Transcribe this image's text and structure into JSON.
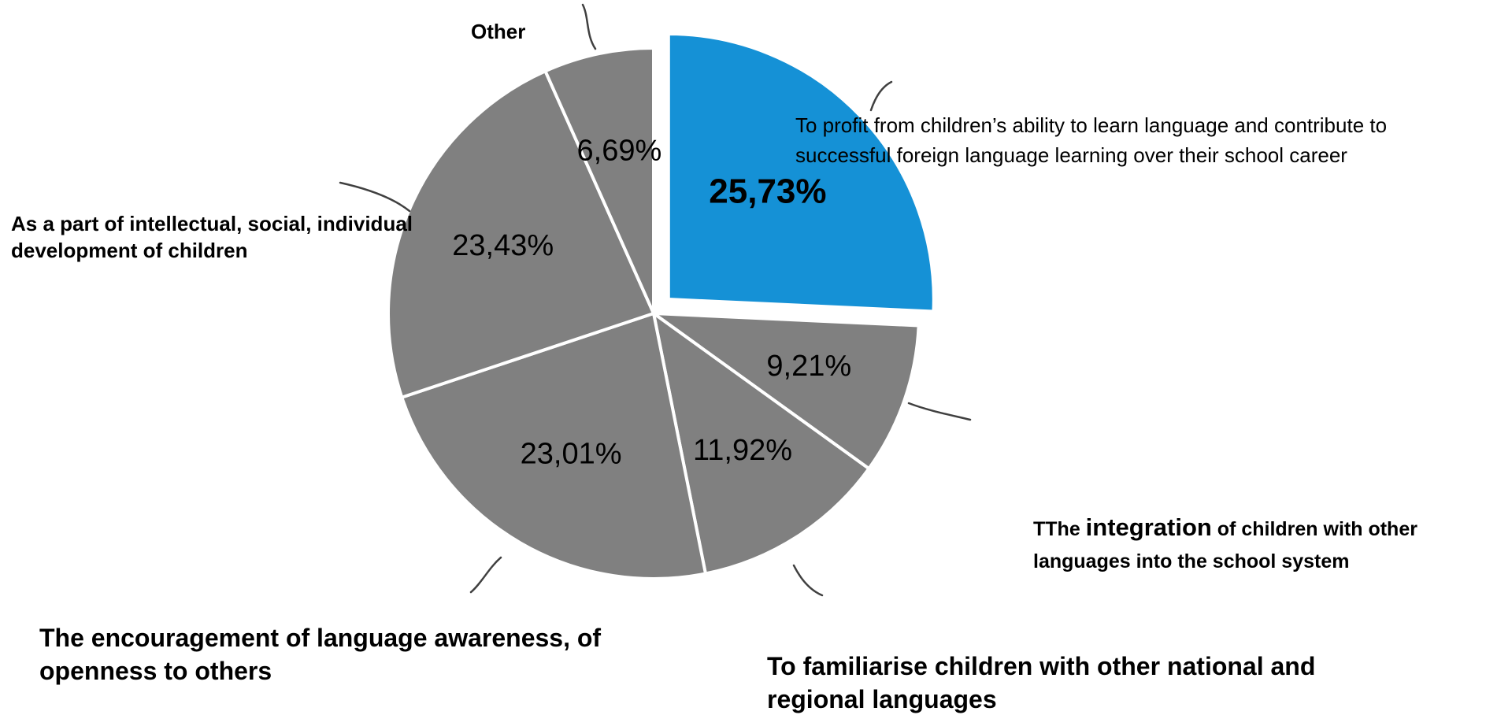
{
  "chart_data": {
    "type": "pie",
    "slices": [
      {
        "id": "profit",
        "label": "To profit from children’s ability to learn language and contribute to successful foreign language learning over their school career",
        "value": 25.73,
        "value_label": "25,73%",
        "color": "#1591d6",
        "exploded": true,
        "emphasis": true
      },
      {
        "id": "integration",
        "label_prefix": "TThe ",
        "label_emph": "integration",
        "label_suffix": " of children with other languages into the school system",
        "value": 9.21,
        "value_label": "9,21%",
        "color": "#808080"
      },
      {
        "id": "familiarise",
        "label": "To familiarise children with other national and regional languages",
        "value": 11.92,
        "value_label": "11,92%",
        "color": "#808080"
      },
      {
        "id": "encouragement",
        "label": "The encouragement of language awareness, of openness to others",
        "value": 23.01,
        "value_label": "23,01%",
        "color": "#808080"
      },
      {
        "id": "intellectual",
        "label": "As a part of intellectual, social, individual development of children",
        "value": 23.43,
        "value_label": "23,43%",
        "color": "#808080"
      },
      {
        "id": "other",
        "label": "Other",
        "value": 6.69,
        "value_label": "6,69%",
        "color": "#808080"
      }
    ],
    "start_angle_deg": 0,
    "direction": "clockwise",
    "edge_color": "#ffffff",
    "leader_color": "#404040"
  }
}
